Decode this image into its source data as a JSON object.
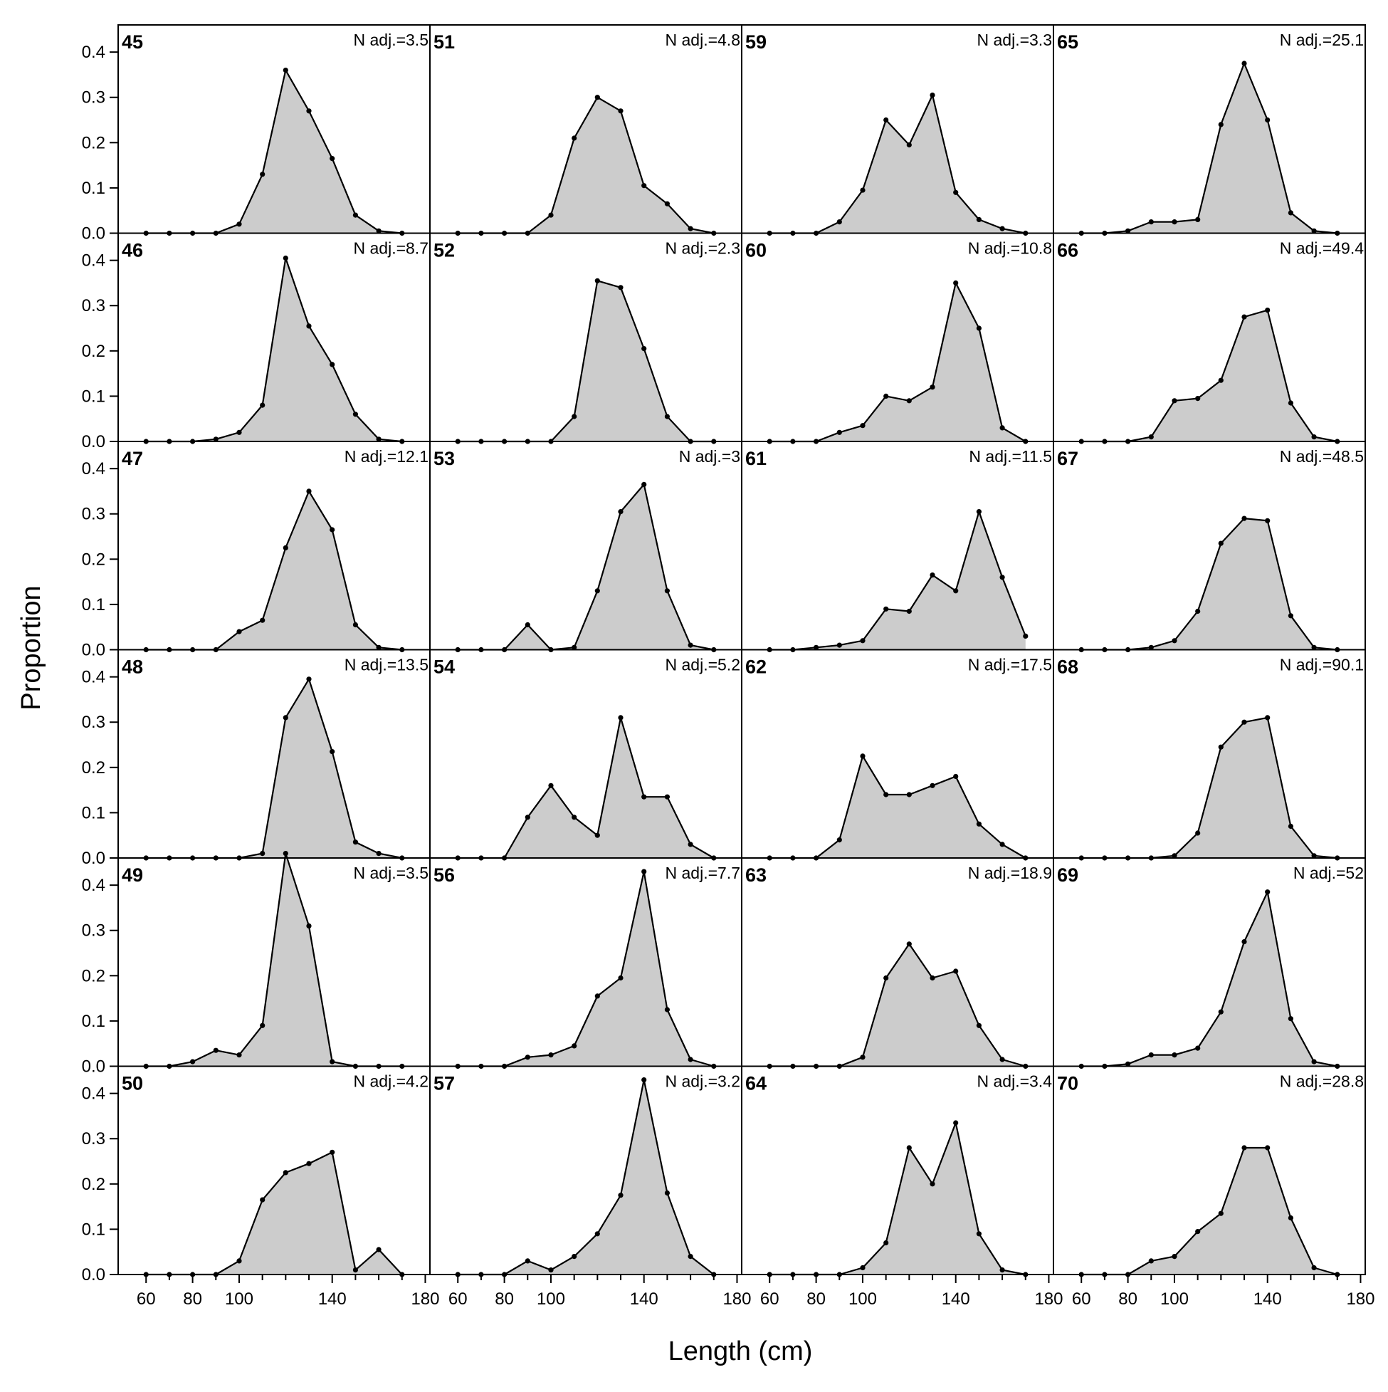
{
  "chart_data": {
    "type": "area",
    "xlabel": "Length (cm)",
    "ylabel": "Proportion",
    "xlim": [
      48,
      182
    ],
    "ylim": [
      0,
      0.46
    ],
    "x_ticks": [
      60,
      80,
      100,
      140,
      180
    ],
    "x_tick_labels": [
      "60",
      "80",
      "100",
      "140",
      "180"
    ],
    "y_ticks": [
      0.0,
      0.1,
      0.2,
      0.3,
      0.4
    ],
    "y_tick_labels": [
      "0.0",
      "0.1",
      "0.2",
      "0.3",
      "0.4"
    ],
    "layout": {
      "rows": 6,
      "cols": 4
    },
    "x": [
      60,
      70,
      80,
      90,
      100,
      110,
      120,
      130,
      140,
      150,
      160,
      170
    ],
    "fill_color": "#cccccc",
    "line_color": "#000000",
    "panels": [
      {
        "label": "45",
        "n_adj": "N adj.=3.5",
        "values": [
          0,
          0,
          0,
          0,
          0.02,
          0.13,
          0.36,
          0.27,
          0.165,
          0.04,
          0.005,
          0
        ]
      },
      {
        "label": "46",
        "n_adj": "N adj.=8.7",
        "values": [
          0,
          0,
          0,
          0.005,
          0.02,
          0.08,
          0.405,
          0.255,
          0.17,
          0.06,
          0.005,
          0
        ]
      },
      {
        "label": "47",
        "n_adj": "N adj.=12.1",
        "values": [
          0,
          0,
          0,
          0,
          0.04,
          0.065,
          0.225,
          0.35,
          0.265,
          0.055,
          0.005,
          0
        ]
      },
      {
        "label": "48",
        "n_adj": "N adj.=13.5",
        "values": [
          0,
          0,
          0,
          0,
          0,
          0.01,
          0.31,
          0.395,
          0.235,
          0.035,
          0.01,
          0
        ]
      },
      {
        "label": "49",
        "n_adj": "N adj.=3.5",
        "values": [
          0,
          0,
          0.01,
          0.035,
          0.025,
          0.09,
          0.47,
          0.31,
          0.01,
          0,
          0,
          0
        ]
      },
      {
        "label": "50",
        "n_adj": "N adj.=4.2",
        "values": [
          0,
          0,
          0,
          0,
          0.03,
          0.165,
          0.225,
          0.245,
          0.27,
          0.01,
          0.055,
          0
        ]
      },
      {
        "label": "51",
        "n_adj": "N adj.=4.8",
        "values": [
          0,
          0,
          0,
          0,
          0.04,
          0.21,
          0.3,
          0.27,
          0.105,
          0.065,
          0.01,
          0
        ]
      },
      {
        "label": "52",
        "n_adj": "N adj.=2.3",
        "values": [
          0,
          0,
          0,
          0,
          0,
          0.055,
          0.355,
          0.34,
          0.205,
          0.055,
          0,
          0
        ]
      },
      {
        "label": "53",
        "n_adj": "N adj.=3",
        "values": [
          0,
          0,
          0,
          0.055,
          0,
          0.005,
          0.13,
          0.305,
          0.365,
          0.13,
          0.01,
          0
        ]
      },
      {
        "label": "54",
        "n_adj": "N adj.=5.2",
        "values": [
          0,
          0,
          0,
          0.09,
          0.16,
          0.09,
          0.05,
          0.31,
          0.135,
          0.135,
          0.03,
          0
        ]
      },
      {
        "label": "56",
        "n_adj": "N adj.=7.7",
        "values": [
          0,
          0,
          0,
          0.02,
          0.025,
          0.045,
          0.155,
          0.195,
          0.43,
          0.125,
          0.015,
          0
        ]
      },
      {
        "label": "57",
        "n_adj": "N adj.=3.2",
        "values": [
          0,
          0,
          0,
          0.03,
          0.01,
          0.04,
          0.09,
          0.175,
          0.43,
          0.18,
          0.04,
          0
        ]
      },
      {
        "label": "59",
        "n_adj": "N adj.=3.3",
        "values": [
          0,
          0,
          0,
          0.025,
          0.095,
          0.25,
          0.195,
          0.305,
          0.09,
          0.03,
          0.01,
          0
        ]
      },
      {
        "label": "60",
        "n_adj": "N adj.=10.8",
        "values": [
          0,
          0,
          0,
          0.02,
          0.035,
          0.1,
          0.09,
          0.12,
          0.35,
          0.25,
          0.03,
          0
        ]
      },
      {
        "label": "61",
        "n_adj": "N adj.=11.5",
        "values": [
          0,
          0,
          0.005,
          0.01,
          0.02,
          0.09,
          0.085,
          0.165,
          0.13,
          0.305,
          0.16,
          0.03
        ]
      },
      {
        "label": "62",
        "n_adj": "N adj.=17.5",
        "values": [
          0,
          0,
          0,
          0.04,
          0.225,
          0.14,
          0.14,
          0.16,
          0.18,
          0.075,
          0.03,
          0
        ]
      },
      {
        "label": "63",
        "n_adj": "N adj.=18.9",
        "values": [
          0,
          0,
          0,
          0,
          0.02,
          0.195,
          0.27,
          0.195,
          0.21,
          0.09,
          0.015,
          0
        ]
      },
      {
        "label": "64",
        "n_adj": "N adj.=3.4",
        "values": [
          0,
          0,
          0,
          0,
          0.015,
          0.07,
          0.28,
          0.2,
          0.335,
          0.09,
          0.01,
          0
        ]
      },
      {
        "label": "65",
        "n_adj": "N adj.=25.1",
        "values": [
          0,
          0,
          0.005,
          0.025,
          0.025,
          0.03,
          0.24,
          0.375,
          0.25,
          0.045,
          0.005,
          0
        ]
      },
      {
        "label": "66",
        "n_adj": "N adj.=49.4",
        "values": [
          0,
          0,
          0,
          0.01,
          0.09,
          0.095,
          0.135,
          0.275,
          0.29,
          0.085,
          0.01,
          0
        ]
      },
      {
        "label": "67",
        "n_adj": "N adj.=48.5",
        "values": [
          0,
          0,
          0,
          0.005,
          0.02,
          0.085,
          0.235,
          0.29,
          0.285,
          0.075,
          0.005,
          0
        ]
      },
      {
        "label": "68",
        "n_adj": "N adj.=90.1",
        "values": [
          0,
          0,
          0,
          0,
          0.005,
          0.055,
          0.245,
          0.3,
          0.31,
          0.07,
          0.005,
          0
        ]
      },
      {
        "label": "69",
        "n_adj": "N adj.=52",
        "values": [
          0,
          0,
          0.005,
          0.025,
          0.025,
          0.04,
          0.12,
          0.275,
          0.385,
          0.105,
          0.01,
          0
        ]
      },
      {
        "label": "70",
        "n_adj": "N adj.=28.8",
        "values": [
          0,
          0,
          0,
          0.03,
          0.04,
          0.095,
          0.135,
          0.28,
          0.28,
          0.125,
          0.015,
          0
        ]
      }
    ]
  }
}
